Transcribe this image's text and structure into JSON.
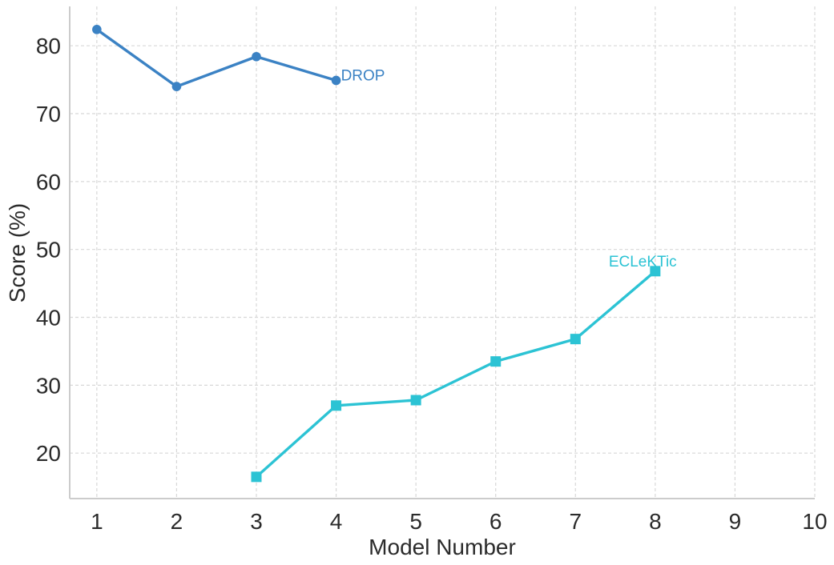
{
  "chart_data": {
    "type": "line",
    "title": "",
    "xlabel": "Model Number",
    "ylabel": "Score (%)",
    "xlim": [
      0.66,
      10.0
    ],
    "ylim": [
      13.3,
      85.8
    ],
    "x_ticks": [
      1,
      2,
      3,
      4,
      5,
      6,
      7,
      8,
      9,
      10
    ],
    "y_ticks": [
      20,
      30,
      40,
      50,
      60,
      70,
      80
    ],
    "grid": true,
    "grid_color": "#d8d8d8",
    "spine_color": "#cccccc",
    "tick_label_color": "#2b2b2b",
    "legend_position": "inline-labels",
    "series": [
      {
        "name": "DROP",
        "color": "#3b82c4",
        "marker": "circle",
        "x": [
          1,
          2,
          3,
          4
        ],
        "values": [
          82.4,
          74.0,
          78.4,
          74.9
        ]
      },
      {
        "name": "ECLeKTic",
        "color": "#2cc3d4",
        "marker": "square",
        "x": [
          3,
          4,
          5,
          6,
          7,
          8
        ],
        "values": [
          16.5,
          27.0,
          27.8,
          33.5,
          36.8,
          46.8
        ]
      }
    ]
  }
}
